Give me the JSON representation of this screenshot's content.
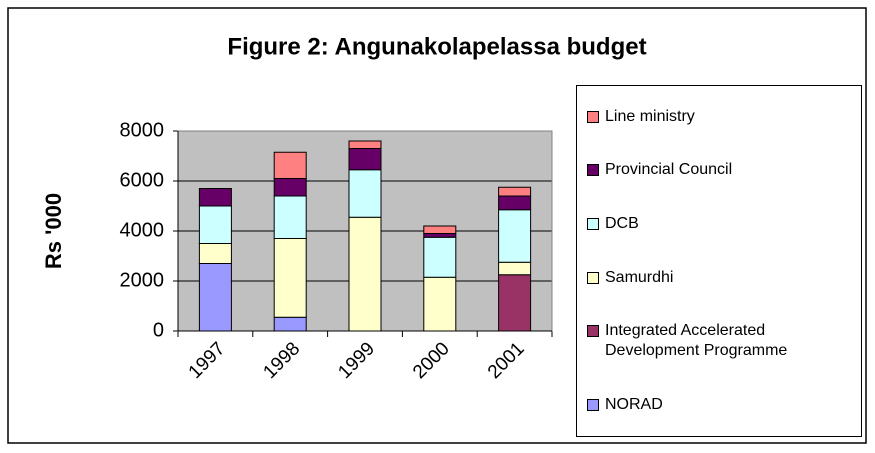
{
  "chart_data": {
    "type": "stacked_bar",
    "title": "Figure 2: Angunakolapelassa budget",
    "y_label": "Rs '000",
    "categories": [
      "1997",
      "1998",
      "1999",
      "2000",
      "2001"
    ],
    "series": [
      {
        "name": "NORAD",
        "color": "#9999ff",
        "values": [
          2700,
          550,
          0,
          0,
          0
        ]
      },
      {
        "name": "Integrated Accelerated Development Programme",
        "color": "#993366",
        "values": [
          0,
          0,
          0,
          0,
          2250
        ]
      },
      {
        "name": "Samurdhi",
        "color": "#ffffcc",
        "values": [
          800,
          3150,
          4550,
          2150,
          500
        ]
      },
      {
        "name": "DCB",
        "color": "#ccffff",
        "values": [
          1500,
          1700,
          1900,
          1600,
          2100
        ]
      },
      {
        "name": "Provincial Council",
        "color": "#660066",
        "values": [
          700,
          700,
          850,
          150,
          550
        ]
      },
      {
        "name": "Line ministry",
        "color": "#ff8080",
        "values": [
          0,
          1050,
          300,
          300,
          350
        ]
      }
    ],
    "ylim": [
      0,
      8000
    ],
    "yticks": [
      0,
      2000,
      4000,
      6000,
      8000
    ],
    "grid": true,
    "legend": "right"
  }
}
